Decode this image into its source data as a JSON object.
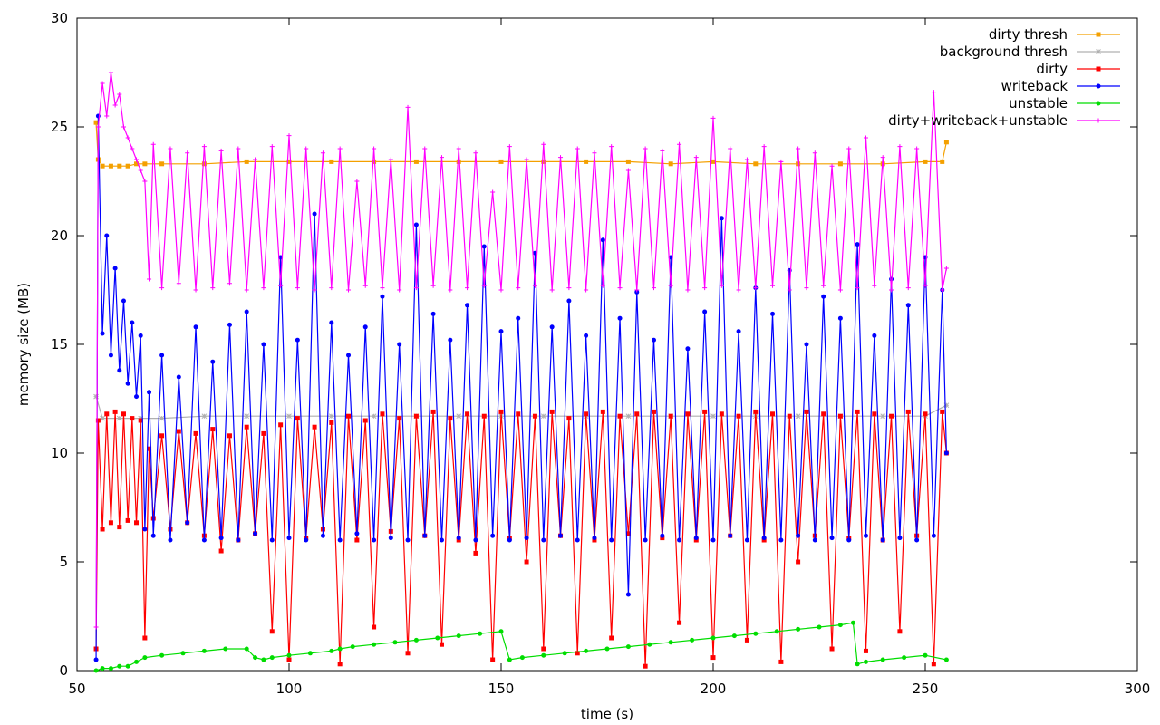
{
  "chart_data": {
    "type": "line",
    "title": "",
    "xlabel": "time (s)",
    "ylabel": "memory size (MB)",
    "xlim": [
      50,
      300
    ],
    "ylim": [
      0,
      30
    ],
    "xticks": [
      50,
      100,
      150,
      200,
      250,
      300
    ],
    "yticks": [
      0,
      5,
      10,
      15,
      20,
      25,
      30
    ],
    "grid": false,
    "legend_position": "top-right",
    "series": [
      {
        "name": "dirty thresh",
        "color": "#f4a000",
        "marker": "square",
        "x": [
          54.5,
          55,
          56,
          58,
          60,
          62,
          64,
          66,
          70,
          80,
          90,
          100,
          110,
          120,
          130,
          140,
          150,
          160,
          170,
          180,
          190,
          200,
          210,
          220,
          230,
          240,
          250,
          254,
          255
        ],
        "y": [
          25.2,
          23.5,
          23.2,
          23.2,
          23.2,
          23.2,
          23.3,
          23.3,
          23.3,
          23.3,
          23.4,
          23.4,
          23.4,
          23.4,
          23.4,
          23.4,
          23.4,
          23.4,
          23.4,
          23.4,
          23.3,
          23.4,
          23.3,
          23.3,
          23.3,
          23.3,
          23.4,
          23.4,
          24.3
        ]
      },
      {
        "name": "background thresh",
        "color": "#b0b0b0",
        "marker": "star",
        "x": [
          54.5,
          56,
          60,
          65,
          70,
          80,
          90,
          100,
          110,
          120,
          130,
          140,
          150,
          160,
          170,
          180,
          190,
          200,
          210,
          220,
          230,
          240,
          250,
          255
        ],
        "y": [
          12.6,
          11.6,
          11.6,
          11.6,
          11.6,
          11.7,
          11.7,
          11.7,
          11.7,
          11.7,
          11.7,
          11.7,
          11.7,
          11.7,
          11.7,
          11.7,
          11.7,
          11.7,
          11.7,
          11.7,
          11.7,
          11.7,
          11.7,
          12.2
        ]
      },
      {
        "name": "dirty",
        "color": "#ff0000",
        "marker": "square",
        "x": [
          54.5,
          55,
          56,
          57,
          58,
          59,
          60,
          61,
          62,
          63,
          64,
          65,
          66,
          67,
          68,
          70,
          72,
          74,
          76,
          78,
          80,
          82,
          84,
          86,
          88,
          90,
          92,
          94,
          96,
          98,
          100,
          102,
          104,
          106,
          108,
          110,
          112,
          114,
          116,
          118,
          120,
          122,
          124,
          126,
          128,
          130,
          132,
          134,
          136,
          138,
          140,
          142,
          144,
          146,
          148,
          150,
          152,
          154,
          156,
          158,
          160,
          162,
          164,
          166,
          168,
          170,
          172,
          174,
          176,
          178,
          180,
          182,
          184,
          186,
          188,
          190,
          192,
          194,
          196,
          198,
          200,
          202,
          204,
          206,
          208,
          210,
          212,
          214,
          216,
          218,
          220,
          222,
          224,
          226,
          228,
          230,
          232,
          234,
          236,
          238,
          240,
          242,
          244,
          246,
          248,
          250,
          252,
          254,
          255
        ],
        "y": [
          1.0,
          11.5,
          6.5,
          11.8,
          6.8,
          11.9,
          6.6,
          11.8,
          6.9,
          11.6,
          6.8,
          11.5,
          1.5,
          10.2,
          7.0,
          10.8,
          6.5,
          11.0,
          6.8,
          10.9,
          6.2,
          11.1,
          5.5,
          10.8,
          6.0,
          11.2,
          6.3,
          10.9,
          1.8,
          11.3,
          0.5,
          11.6,
          6.1,
          11.2,
          6.5,
          11.4,
          0.3,
          11.7,
          6.0,
          11.5,
          2.0,
          11.8,
          6.4,
          11.6,
          0.8,
          11.7,
          6.2,
          11.9,
          1.2,
          11.6,
          6.0,
          11.8,
          5.4,
          11.7,
          0.5,
          11.9,
          6.1,
          11.8,
          5.0,
          11.7,
          1.0,
          11.9,
          6.2,
          11.6,
          0.8,
          11.8,
          6.0,
          11.9,
          1.5,
          11.7,
          6.3,
          11.8,
          0.2,
          11.9,
          6.1,
          11.7,
          2.2,
          11.8,
          6.0,
          11.9,
          0.6,
          11.8,
          6.2,
          11.7,
          1.4,
          11.9,
          6.0,
          11.8,
          0.4,
          11.7,
          5.0,
          11.9,
          6.2,
          11.8,
          1.0,
          11.7,
          6.1,
          11.9,
          0.9,
          11.8,
          6.0,
          11.7,
          1.8,
          11.9,
          6.2,
          11.8,
          0.3,
          11.9,
          10.0
        ]
      },
      {
        "name": "writeback",
        "color": "#0000ff",
        "marker": "circle",
        "x": [
          54.5,
          55,
          56,
          57,
          58,
          59,
          60,
          61,
          62,
          63,
          64,
          65,
          66,
          67,
          68,
          70,
          72,
          74,
          76,
          78,
          80,
          82,
          84,
          86,
          88,
          90,
          92,
          94,
          96,
          98,
          100,
          102,
          104,
          106,
          108,
          110,
          112,
          114,
          116,
          118,
          120,
          122,
          124,
          126,
          128,
          130,
          132,
          134,
          136,
          138,
          140,
          142,
          144,
          146,
          148,
          150,
          152,
          154,
          156,
          158,
          160,
          162,
          164,
          166,
          168,
          170,
          172,
          174,
          176,
          178,
          180,
          182,
          184,
          186,
          188,
          190,
          192,
          194,
          196,
          198,
          200,
          202,
          204,
          206,
          208,
          210,
          212,
          214,
          216,
          218,
          220,
          222,
          224,
          226,
          228,
          230,
          232,
          234,
          236,
          238,
          240,
          242,
          244,
          246,
          248,
          250,
          252,
          254,
          255
        ],
        "y": [
          0.5,
          25.5,
          15.5,
          20.0,
          14.5,
          18.5,
          13.8,
          17.0,
          13.2,
          16.0,
          12.6,
          15.4,
          6.5,
          12.8,
          6.2,
          14.5,
          6.0,
          13.5,
          6.8,
          15.8,
          6.0,
          14.2,
          6.1,
          15.9,
          6.0,
          16.5,
          6.3,
          15.0,
          6.0,
          19.0,
          6.1,
          15.2,
          6.0,
          21.0,
          6.2,
          16.0,
          6.0,
          14.5,
          6.3,
          15.8,
          6.0,
          17.2,
          6.1,
          15.0,
          6.0,
          20.5,
          6.2,
          16.4,
          6.0,
          15.2,
          6.1,
          16.8,
          6.0,
          19.5,
          6.2,
          15.6,
          6.0,
          16.2,
          6.1,
          19.2,
          6.0,
          15.8,
          6.2,
          17.0,
          6.0,
          15.4,
          6.1,
          19.8,
          6.0,
          16.2,
          3.5,
          17.4,
          6.0,
          15.2,
          6.2,
          19.0,
          6.0,
          14.8,
          6.1,
          16.5,
          6.0,
          20.8,
          6.2,
          15.6,
          6.0,
          17.6,
          6.1,
          16.4,
          6.0,
          18.4,
          6.2,
          15.0,
          6.0,
          17.2,
          6.1,
          16.2,
          6.0,
          19.6,
          6.2,
          15.4,
          6.0,
          18.0,
          6.1,
          16.8,
          6.0,
          19.0,
          6.2,
          17.5,
          10.0
        ]
      },
      {
        "name": "unstable",
        "color": "#00dd00",
        "marker": "circle",
        "x": [
          54.5,
          56,
          58,
          60,
          62,
          64,
          66,
          70,
          75,
          80,
          85,
          90,
          92,
          94,
          96,
          100,
          105,
          110,
          112,
          115,
          120,
          125,
          130,
          135,
          140,
          145,
          150,
          152,
          155,
          160,
          165,
          170,
          175,
          180,
          185,
          190,
          195,
          200,
          205,
          210,
          215,
          220,
          225,
          230,
          233,
          234,
          236,
          240,
          245,
          250,
          255
        ],
        "y": [
          0.0,
          0.1,
          0.1,
          0.2,
          0.2,
          0.4,
          0.6,
          0.7,
          0.8,
          0.9,
          1.0,
          1.0,
          0.6,
          0.5,
          0.6,
          0.7,
          0.8,
          0.9,
          1.0,
          1.1,
          1.2,
          1.3,
          1.4,
          1.5,
          1.6,
          1.7,
          1.8,
          0.5,
          0.6,
          0.7,
          0.8,
          0.9,
          1.0,
          1.1,
          1.2,
          1.3,
          1.4,
          1.5,
          1.6,
          1.7,
          1.8,
          1.9,
          2.0,
          2.1,
          2.2,
          0.3,
          0.4,
          0.5,
          0.6,
          0.7,
          0.5
        ]
      },
      {
        "name": "dirty+writeback+unstable",
        "color": "#ff00ff",
        "marker": "plus",
        "x": [
          54.5,
          55,
          56,
          57,
          58,
          59,
          60,
          61,
          62,
          63,
          64,
          65,
          66,
          67,
          68,
          70,
          72,
          74,
          76,
          78,
          80,
          82,
          84,
          86,
          88,
          90,
          92,
          94,
          96,
          98,
          100,
          102,
          104,
          106,
          108,
          110,
          112,
          114,
          116,
          118,
          120,
          122,
          124,
          126,
          128,
          130,
          132,
          134,
          136,
          138,
          140,
          142,
          144,
          146,
          148,
          150,
          152,
          154,
          156,
          158,
          160,
          162,
          164,
          166,
          168,
          170,
          172,
          174,
          176,
          178,
          180,
          182,
          184,
          186,
          188,
          190,
          192,
          194,
          196,
          198,
          200,
          202,
          204,
          206,
          208,
          210,
          212,
          214,
          216,
          218,
          220,
          222,
          224,
          226,
          228,
          230,
          232,
          234,
          236,
          238,
          240,
          242,
          244,
          246,
          248,
          250,
          252,
          254,
          255
        ],
        "y": [
          2.0,
          25.0,
          27.0,
          25.5,
          27.5,
          26.0,
          26.5,
          25.0,
          24.5,
          24.0,
          23.5,
          23.0,
          22.5,
          18.0,
          24.2,
          17.6,
          24.0,
          17.8,
          23.8,
          17.5,
          24.1,
          17.6,
          23.9,
          17.8,
          24.0,
          17.5,
          23.5,
          17.6,
          24.1,
          17.7,
          24.6,
          17.6,
          24.0,
          17.5,
          23.8,
          17.6,
          24.0,
          17.5,
          22.5,
          17.7,
          24.0,
          17.6,
          23.5,
          17.5,
          25.9,
          17.6,
          24.0,
          17.7,
          23.6,
          17.5,
          24.0,
          17.6,
          23.8,
          17.7,
          22.0,
          17.5,
          24.1,
          17.6,
          23.5,
          17.7,
          24.2,
          17.5,
          23.6,
          17.6,
          24.0,
          17.5,
          23.8,
          17.7,
          24.1,
          17.6,
          23.0,
          17.5,
          24.0,
          17.6,
          23.9,
          17.7,
          24.2,
          17.5,
          23.6,
          17.6,
          25.4,
          17.7,
          24.0,
          17.5,
          23.5,
          17.6,
          24.1,
          17.7,
          23.4,
          17.5,
          24.0,
          17.6,
          23.8,
          17.7,
          23.2,
          17.5,
          24.0,
          17.6,
          24.5,
          17.7,
          23.6,
          17.5,
          24.1,
          17.6,
          24.0,
          17.7,
          26.6,
          17.5,
          18.5
        ]
      }
    ]
  }
}
